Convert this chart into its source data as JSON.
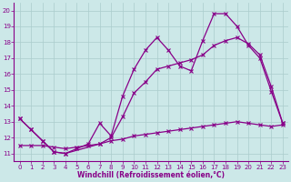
{
  "xlabel": "Windchill (Refroidissement éolien,°C)",
  "bg_color": "#cce8e8",
  "line_color": "#880088",
  "grid_color": "#aacccc",
  "xlim": [
    -0.5,
    23.5
  ],
  "ylim": [
    10.5,
    20.5
  ],
  "yticks": [
    11,
    12,
    13,
    14,
    15,
    16,
    17,
    18,
    19,
    20
  ],
  "xticks": [
    0,
    1,
    2,
    3,
    4,
    5,
    6,
    7,
    8,
    9,
    10,
    11,
    12,
    13,
    14,
    15,
    16,
    17,
    18,
    19,
    20,
    21,
    22,
    23
  ],
  "line1_x": [
    0,
    1,
    2,
    3,
    4,
    5,
    6,
    7,
    8,
    9,
    10,
    11,
    12,
    13,
    14,
    15,
    16,
    17,
    18,
    19,
    20,
    21,
    22,
    23
  ],
  "line1_y": [
    13.2,
    12.5,
    11.8,
    11.1,
    11.0,
    11.3,
    11.6,
    12.9,
    12.1,
    14.6,
    16.3,
    17.5,
    18.3,
    17.5,
    16.5,
    16.2,
    18.1,
    19.8,
    19.8,
    19.0,
    17.8,
    17.0,
    14.9,
    12.9
  ],
  "line2_x": [
    0,
    1,
    2,
    3,
    4,
    7,
    8,
    9,
    10,
    11,
    12,
    13,
    14,
    15,
    16,
    17,
    18,
    19,
    20,
    21,
    22,
    23
  ],
  "line2_y": [
    13.2,
    12.5,
    11.8,
    11.1,
    11.0,
    11.6,
    12.0,
    13.3,
    14.8,
    15.5,
    16.3,
    16.5,
    16.7,
    16.9,
    17.2,
    17.8,
    18.1,
    18.3,
    17.9,
    17.2,
    15.2,
    12.9
  ],
  "line3_x": [
    0,
    1,
    2,
    3,
    4,
    5,
    6,
    7,
    8,
    9,
    10,
    11,
    12,
    13,
    14,
    15,
    16,
    17,
    18,
    19,
    20,
    21,
    22,
    23
  ],
  "line3_y": [
    11.5,
    11.5,
    11.5,
    11.4,
    11.3,
    11.4,
    11.5,
    11.6,
    11.8,
    11.9,
    12.1,
    12.2,
    12.3,
    12.4,
    12.5,
    12.6,
    12.7,
    12.8,
    12.9,
    13.0,
    12.9,
    12.8,
    12.7,
    12.8
  ],
  "tick_fontsize": 5,
  "xlabel_fontsize": 5.5,
  "marker": "x",
  "markersize": 3,
  "linewidth": 0.9
}
